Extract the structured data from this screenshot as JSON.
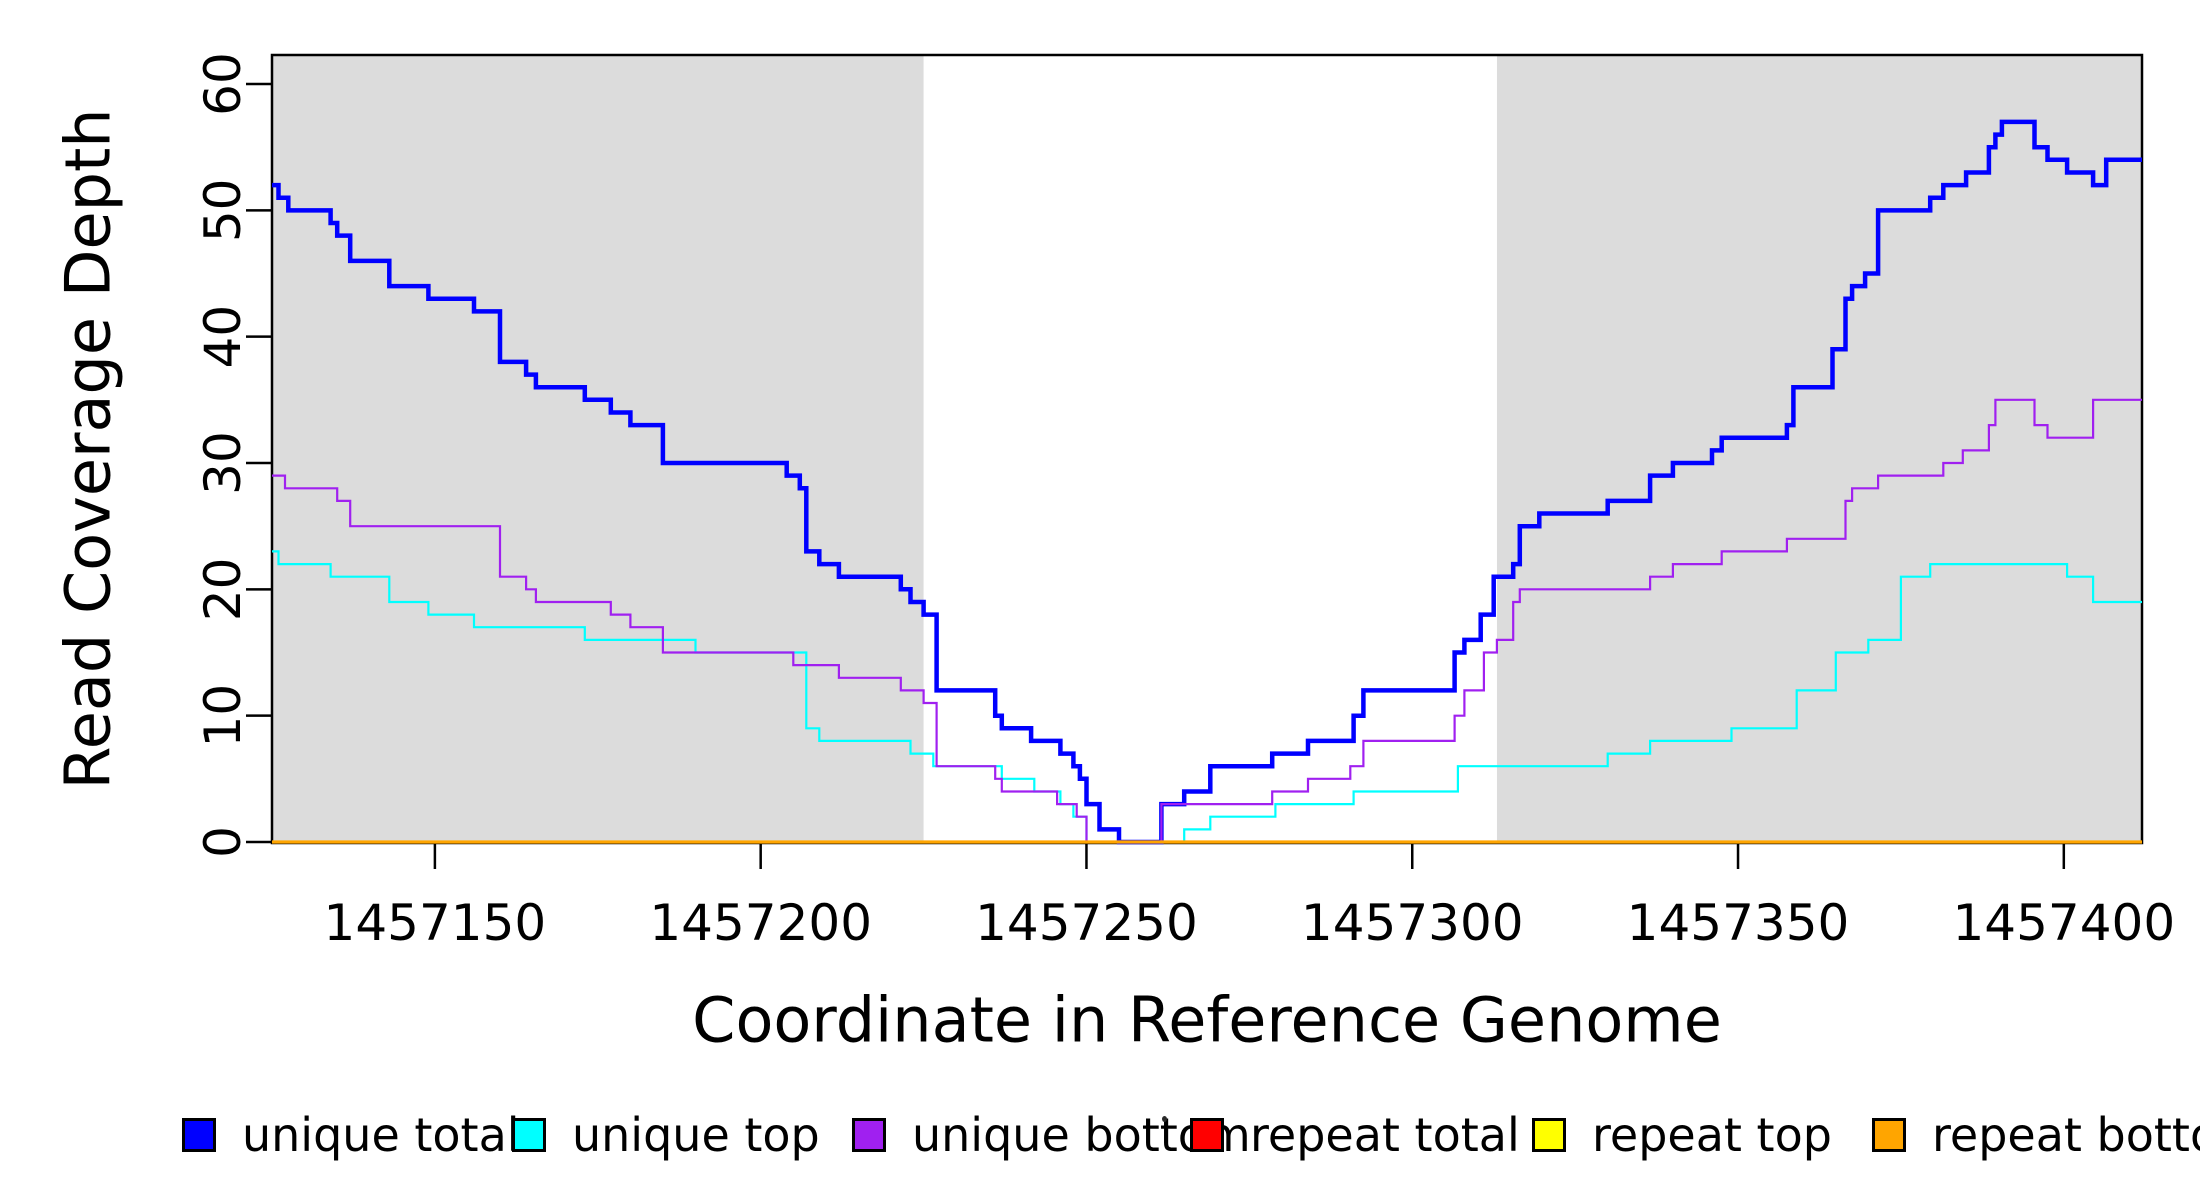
{
  "chart_data": {
    "type": "step-line",
    "title": "",
    "xlabel": "Coordinate in Reference Genome",
    "ylabel": "Read Coverage Depth",
    "xlim": [
      1457125,
      1457412
    ],
    "ylim": [
      0,
      62.3
    ],
    "x_ticks": [
      1457150,
      1457200,
      1457250,
      1457300,
      1457350,
      1457400
    ],
    "y_ticks": [
      0,
      10,
      20,
      30,
      40,
      50,
      60
    ],
    "grid": false,
    "legend_position": "bottom",
    "shade_color": "#DCDCDC",
    "shaded_x_regions": [
      [
        1457125,
        1457225
      ],
      [
        1457313,
        1457412
      ]
    ],
    "series": [
      {
        "name": "unique total",
        "color": "#0000FF",
        "width": 4.5,
        "steps": [
          [
            1457125,
            52
          ],
          [
            1457126,
            51
          ],
          [
            1457127.5,
            50
          ],
          [
            1457134,
            49
          ],
          [
            1457135,
            48
          ],
          [
            1457137,
            46
          ],
          [
            1457143,
            44
          ],
          [
            1457149,
            43
          ],
          [
            1457156,
            42
          ],
          [
            1457160,
            38
          ],
          [
            1457164,
            37
          ],
          [
            1457165.5,
            36
          ],
          [
            1457173,
            35
          ],
          [
            1457177,
            34
          ],
          [
            1457180,
            33
          ],
          [
            1457185,
            30
          ],
          [
            1457204,
            29
          ],
          [
            1457206,
            28
          ],
          [
            1457207,
            23
          ],
          [
            1457209,
            22
          ],
          [
            1457212,
            21
          ],
          [
            1457221.5,
            20
          ],
          [
            1457223,
            19
          ],
          [
            1457225,
            18
          ],
          [
            1457227,
            12
          ],
          [
            1457236,
            10
          ],
          [
            1457237,
            9
          ],
          [
            1457241.5,
            8
          ],
          [
            1457246,
            7
          ],
          [
            1457248,
            6
          ],
          [
            1457249,
            5
          ],
          [
            1457250,
            3
          ],
          [
            1457252,
            1
          ],
          [
            1457255,
            0
          ],
          [
            1457261.5,
            3
          ],
          [
            1457265,
            4
          ],
          [
            1457269,
            6
          ],
          [
            1457278.5,
            7
          ],
          [
            1457284,
            8
          ],
          [
            1457291,
            10
          ],
          [
            1457292.5,
            12
          ],
          [
            1457306.5,
            15
          ],
          [
            1457308,
            16
          ],
          [
            1457310.5,
            18
          ],
          [
            1457312.5,
            21
          ],
          [
            1457315.5,
            22
          ],
          [
            1457316.5,
            25
          ],
          [
            1457319.5,
            26
          ],
          [
            1457330,
            27
          ],
          [
            1457336.5,
            29
          ],
          [
            1457340,
            30
          ],
          [
            1457346,
            31
          ],
          [
            1457347.5,
            32
          ],
          [
            1457357.5,
            33
          ],
          [
            1457358.5,
            36
          ],
          [
            1457364.5,
            39
          ],
          [
            1457366.5,
            43
          ],
          [
            1457367.5,
            44
          ],
          [
            1457369.5,
            45
          ],
          [
            1457371.5,
            50
          ],
          [
            1457379.5,
            51
          ],
          [
            1457381.5,
            52
          ],
          [
            1457385,
            53
          ],
          [
            1457388.5,
            55
          ],
          [
            1457389.5,
            56
          ],
          [
            1457390.5,
            57
          ],
          [
            1457395.5,
            55
          ],
          [
            1457397.5,
            54
          ],
          [
            1457400.5,
            53
          ],
          [
            1457404.5,
            52
          ],
          [
            1457406.5,
            54
          ]
        ]
      },
      {
        "name": "unique top",
        "color": "#00FFFF",
        "width": 2.2,
        "steps": [
          [
            1457125,
            23
          ],
          [
            1457126,
            22
          ],
          [
            1457134,
            21
          ],
          [
            1457143,
            19
          ],
          [
            1457149,
            18
          ],
          [
            1457156,
            17
          ],
          [
            1457173,
            16
          ],
          [
            1457190,
            15
          ],
          [
            1457207,
            9
          ],
          [
            1457209,
            8
          ],
          [
            1457223,
            7
          ],
          [
            1457226.5,
            6
          ],
          [
            1457237,
            5
          ],
          [
            1457242,
            4
          ],
          [
            1457246,
            3
          ],
          [
            1457248,
            2
          ],
          [
            1457250,
            0
          ],
          [
            1457265,
            1
          ],
          [
            1457269,
            2
          ],
          [
            1457279,
            3
          ],
          [
            1457291,
            4
          ],
          [
            1457307,
            6
          ],
          [
            1457330,
            7
          ],
          [
            1457336.5,
            8
          ],
          [
            1457349,
            9
          ],
          [
            1457359,
            12
          ],
          [
            1457365,
            15
          ],
          [
            1457370,
            16
          ],
          [
            1457375,
            21
          ],
          [
            1457379.5,
            22
          ],
          [
            1457400.5,
            21
          ],
          [
            1457404.5,
            19
          ]
        ]
      },
      {
        "name": "unique bottom",
        "color": "#A020F0",
        "width": 2.2,
        "steps": [
          [
            1457125,
            29
          ],
          [
            1457127,
            28
          ],
          [
            1457135,
            27
          ],
          [
            1457137,
            25
          ],
          [
            1457160,
            21
          ],
          [
            1457164,
            20
          ],
          [
            1457165.5,
            19
          ],
          [
            1457177,
            18
          ],
          [
            1457180,
            17
          ],
          [
            1457185,
            15
          ],
          [
            1457205,
            14
          ],
          [
            1457212,
            13
          ],
          [
            1457221.5,
            12
          ],
          [
            1457225,
            11
          ],
          [
            1457227,
            6
          ],
          [
            1457236,
            5
          ],
          [
            1457237,
            4
          ],
          [
            1457245.5,
            3
          ],
          [
            1457248.5,
            2
          ],
          [
            1457250,
            0
          ],
          [
            1457261.5,
            3
          ],
          [
            1457278.5,
            4
          ],
          [
            1457284,
            5
          ],
          [
            1457290.5,
            6
          ],
          [
            1457292.5,
            8
          ],
          [
            1457306.5,
            10
          ],
          [
            1457308,
            12
          ],
          [
            1457311,
            15
          ],
          [
            1457313,
            16
          ],
          [
            1457315.5,
            19
          ],
          [
            1457316.5,
            20
          ],
          [
            1457336.5,
            21
          ],
          [
            1457340,
            22
          ],
          [
            1457347.5,
            23
          ],
          [
            1457357.5,
            24
          ],
          [
            1457366.5,
            27
          ],
          [
            1457367.5,
            28
          ],
          [
            1457371.5,
            29
          ],
          [
            1457381.5,
            30
          ],
          [
            1457384.5,
            31
          ],
          [
            1457388.5,
            33
          ],
          [
            1457389.5,
            35
          ],
          [
            1457395.5,
            33
          ],
          [
            1457397.5,
            32
          ],
          [
            1457404.5,
            35
          ]
        ]
      },
      {
        "name": "repeat total",
        "color": "#FF0000",
        "width": 3,
        "steps": [
          [
            1457125,
            0
          ]
        ]
      },
      {
        "name": "repeat top",
        "color": "#FFFF00",
        "width": 3,
        "steps": [
          [
            1457125,
            0
          ]
        ]
      },
      {
        "name": "repeat bottom",
        "color": "#FFA500",
        "width": 3.2,
        "steps": [
          [
            1457125,
            0
          ]
        ]
      }
    ]
  }
}
